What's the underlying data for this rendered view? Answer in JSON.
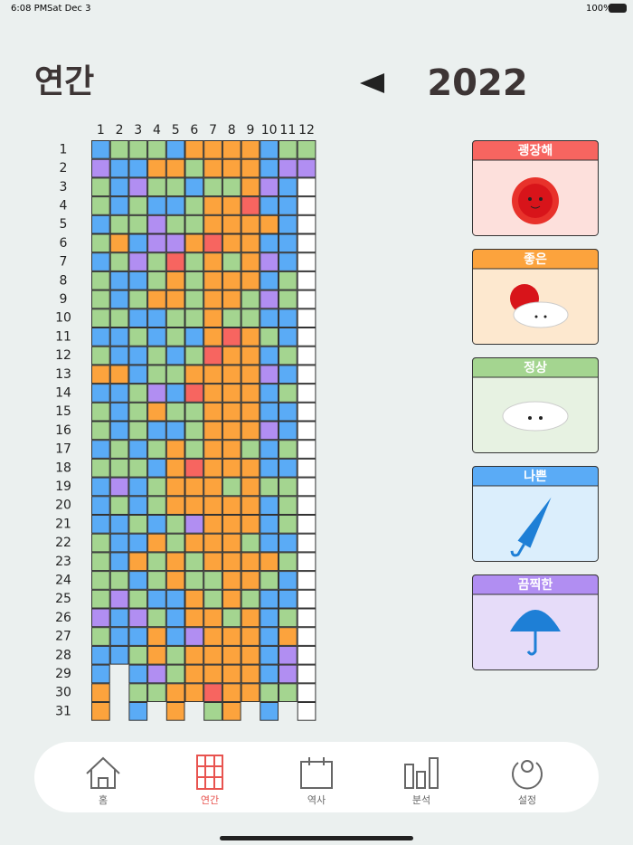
{
  "status": {
    "time": "6:08 PM",
    "date": "Sat Dec 3",
    "battery": "100%"
  },
  "header": {
    "title": "연간",
    "year": "2022"
  },
  "months": [
    1,
    2,
    3,
    4,
    5,
    6,
    7,
    8,
    9,
    10,
    11,
    12
  ],
  "days": [
    1,
    2,
    3,
    4,
    5,
    6,
    7,
    8,
    9,
    10,
    11,
    12,
    13,
    14,
    15,
    16,
    17,
    18,
    19,
    20,
    21,
    22,
    23,
    24,
    25,
    26,
    27,
    28,
    29,
    30,
    31
  ],
  "moods": [
    {
      "name": "괭장해",
      "color": "#f76560",
      "bg": "#fde0dc"
    },
    {
      "name": "좋은",
      "color": "#fca33d",
      "bg": "#fde8cf"
    },
    {
      "name": "정상",
      "color": "#a4d590",
      "bg": "#e7f2e2"
    },
    {
      "name": "나쁜",
      "color": "#5aabf6",
      "bg": "#dbeefc"
    },
    {
      "name": "끔찍한",
      "color": "#b18ef2",
      "bg": "#e6dcf9"
    }
  ],
  "grid": [
    [
      3,
      4,
      2,
      2,
      3,
      2,
      3,
      2,
      2,
      2,
      3,
      2,
      1,
      3,
      2,
      2,
      3,
      2,
      3,
      3,
      3,
      2,
      2,
      2,
      2,
      4,
      2,
      3,
      3,
      1,
      1
    ],
    [
      2,
      3,
      3,
      3,
      2,
      1,
      2,
      3,
      3,
      2,
      3,
      3,
      1,
      3,
      3,
      3,
      2,
      2,
      4,
      2,
      3,
      3,
      3,
      2,
      4,
      3,
      3,
      3
    ],
    [
      2,
      3,
      4,
      2,
      2,
      3,
      4,
      3,
      2,
      3,
      2,
      3,
      3,
      2,
      2,
      2,
      3,
      2,
      3,
      3,
      2,
      3,
      1,
      3,
      2,
      4,
      3,
      2,
      3,
      2,
      3
    ],
    [
      2,
      1,
      2,
      3,
      4,
      4,
      2,
      2,
      1,
      3,
      3,
      2,
      2,
      4,
      1,
      3,
      2,
      3,
      2,
      2,
      3,
      1,
      2,
      2,
      3,
      2,
      1,
      1,
      4,
      2
    ],
    [
      3,
      1,
      2,
      3,
      2,
      4,
      0,
      1,
      1,
      2,
      2,
      3,
      2,
      3,
      2,
      3,
      1,
      1,
      1,
      1,
      2,
      2,
      1,
      1,
      3,
      3,
      3,
      2,
      2,
      1,
      1
    ],
    [
      1,
      2,
      3,
      2,
      2,
      1,
      2,
      2,
      2,
      2,
      3,
      2,
      1,
      0,
      2,
      2,
      2,
      0,
      1,
      1,
      4,
      1,
      2,
      2,
      1,
      1,
      4,
      1,
      1,
      1
    ],
    [
      1,
      1,
      2,
      1,
      1,
      0,
      1,
      1,
      1,
      1,
      1,
      0,
      1,
      1,
      1,
      1,
      1,
      1,
      1,
      1,
      1,
      1,
      1,
      2,
      2,
      1,
      1,
      1,
      1,
      0,
      2
    ],
    [
      1,
      1,
      2,
      1,
      1,
      1,
      2,
      1,
      1,
      2,
      0,
      1,
      1,
      1,
      1,
      1,
      1,
      1,
      2,
      1,
      1,
      1,
      1,
      1,
      1,
      2,
      1,
      1,
      1,
      1,
      1
    ],
    [
      1,
      1,
      1,
      0,
      1,
      1,
      1,
      1,
      2,
      2,
      1,
      1,
      1,
      1,
      1,
      1,
      2,
      1,
      1,
      1,
      1,
      2,
      1,
      1,
      2,
      1,
      1,
      1,
      1,
      1
    ],
    [
      3,
      3,
      4,
      3,
      1,
      3,
      4,
      3,
      4,
      3,
      2,
      3,
      4,
      3,
      3,
      4,
      3,
      3,
      2,
      3,
      3,
      3,
      1,
      2,
      3,
      3,
      3,
      3,
      3,
      2,
      3
    ],
    [
      2,
      4,
      3,
      3,
      3,
      3,
      3,
      2,
      2,
      3,
      3,
      2,
      3,
      2,
      3,
      3,
      2,
      3,
      2,
      2,
      2,
      3,
      2,
      3,
      3,
      2,
      1,
      4,
      4,
      2
    ],
    [
      2,
      4,
      null,
      null,
      null,
      null,
      null,
      null,
      null,
      null,
      null,
      null,
      null,
      null,
      null,
      null,
      null,
      null,
      null,
      null,
      null,
      null,
      null,
      null,
      null,
      null,
      null,
      null,
      null,
      null,
      null
    ]
  ],
  "nav": {
    "active": 1,
    "tabs": [
      "홈",
      "연간",
      "역사",
      "분석",
      "설정"
    ]
  }
}
